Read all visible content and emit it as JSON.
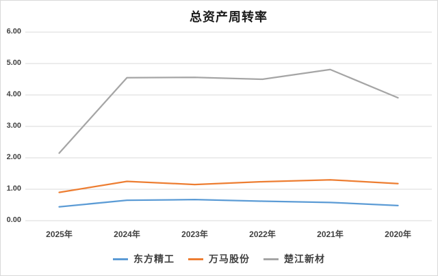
{
  "chart_data": {
    "type": "line",
    "title": "总资产周转率",
    "categories": [
      "2025年",
      "2024年",
      "2023年",
      "2022年",
      "2021年",
      "2020年"
    ],
    "series": [
      {
        "name": "东方精工",
        "color": "#5B9BD5",
        "values": [
          0.44,
          0.65,
          0.67,
          0.62,
          0.58,
          0.48
        ]
      },
      {
        "name": "万马股份",
        "color": "#ED7D31",
        "values": [
          0.9,
          1.25,
          1.15,
          1.24,
          1.3,
          1.18
        ]
      },
      {
        "name": "楚江新材",
        "color": "#A5A5A5",
        "values": [
          2.15,
          4.55,
          4.56,
          4.5,
          4.81,
          3.91
        ]
      }
    ],
    "xlabel": "",
    "ylabel": "",
    "ylim": [
      0,
      6
    ],
    "ytick_labels": [
      "0.00",
      "1.00",
      "2.00",
      "3.00",
      "4.00",
      "5.00",
      "6.00"
    ],
    "grid": "horizontal-only",
    "gridline_color": "#D9D9D9",
    "text_color": "#404040",
    "legend_position": "bottom"
  }
}
